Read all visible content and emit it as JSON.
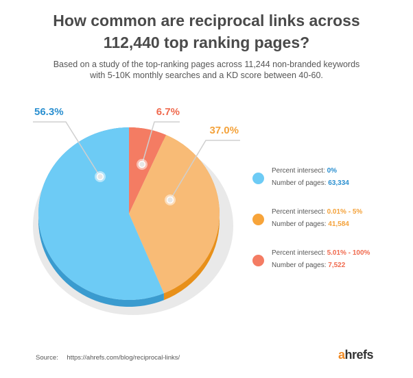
{
  "title_line1": "How common are reciprocal links across",
  "title_line2": "112,440 top ranking pages?",
  "subtitle_line1": "Based on a study of the top-ranking pages across 11,244 non-branded keywords",
  "subtitle_line2": "with 5-10K monthly searches and a KD score between 40-60.",
  "chart_data": {
    "type": "pie",
    "title": "How common are reciprocal links across 112,440 top ranking pages?",
    "slices": [
      {
        "label": "56.3%",
        "percent": 56.3,
        "intersect_label": "Percent intersect:",
        "intersect_value": "0%",
        "pages_label": "Number of pages:",
        "pages_value": "63,334",
        "color": "#6dcbf5",
        "side_color": "#3a9bcf",
        "label_color": "#2a8fd0",
        "dot_color": "#6dcbf5"
      },
      {
        "label": "37.0%",
        "percent": 37.0,
        "intersect_label": "Percent intersect:",
        "intersect_value": "0.01% - 5%",
        "pages_label": "Number of pages:",
        "pages_value": "41,584",
        "color": "#f8bb76",
        "side_color": "#e8901a",
        "label_color": "#f4a23a",
        "dot_color": "#f7a43a"
      },
      {
        "label": "6.7%",
        "percent": 6.7,
        "intersect_label": "Percent intersect:",
        "intersect_value": "5.01% - 100%",
        "pages_label": "Number of pages:",
        "pages_value": "7,522",
        "color": "#f47c63",
        "side_color": "#d95a40",
        "label_color": "#f06a4e",
        "dot_color": "#f47c63"
      }
    ]
  },
  "source_label": "Source:",
  "source_url": "https://ahrefs.com/blog/reciprocal-links/",
  "logo_a": "a",
  "logo_rest": "hrefs"
}
